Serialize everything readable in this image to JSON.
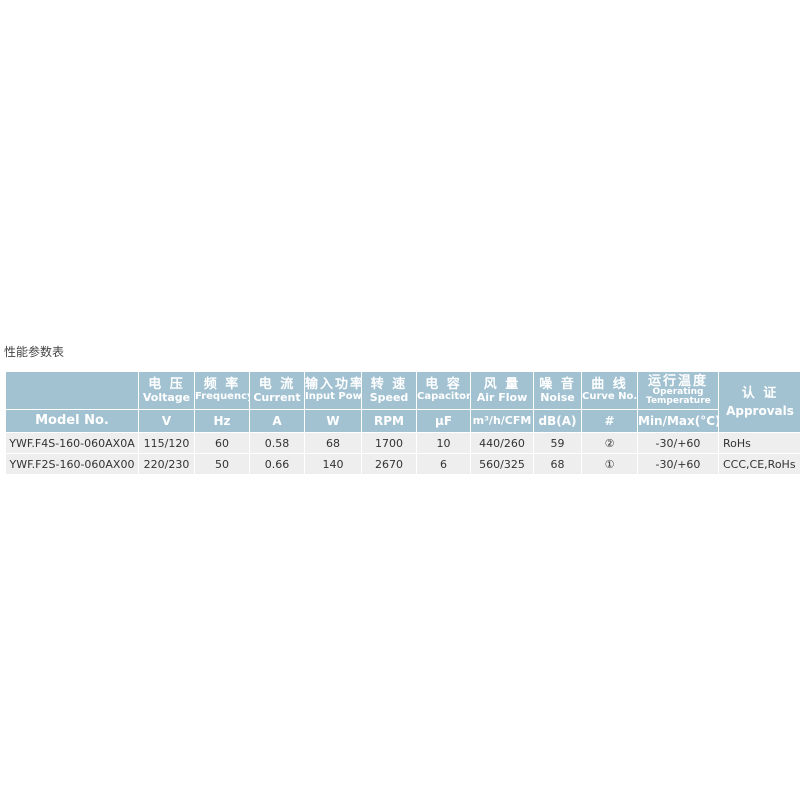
{
  "title": "性能参数表",
  "header": {
    "model": "Model No.",
    "columns": [
      {
        "cn": "电 压",
        "en": "Voltage",
        "unit": "V"
      },
      {
        "cn": "频 率",
        "en": "Frequency",
        "unit": "Hz"
      },
      {
        "cn": "电 流",
        "en": "Current",
        "unit": "A"
      },
      {
        "cn": "输入功率",
        "en": "Input Power",
        "unit": "W"
      },
      {
        "cn": "转 速",
        "en": "Speed",
        "unit": "RPM"
      },
      {
        "cn": "电 容",
        "en": "Capacitor",
        "unit": "μF"
      },
      {
        "cn": "风 量",
        "en": "Air Flow",
        "unit": "m³/h/CFM"
      },
      {
        "cn": "噪 音",
        "en": "Noise",
        "unit": "dB(A)"
      },
      {
        "cn": "曲 线",
        "en": "Curve No.",
        "unit": "#"
      },
      {
        "cn": "运行温度",
        "en": "Operating Temperature",
        "unit": "Min/Max(°C)"
      }
    ],
    "approvals": {
      "cn": "认 证",
      "en": "Approvals"
    }
  },
  "rows": [
    {
      "model": "YWF.F4S-160-060AX0A",
      "voltage": "115/120",
      "frequency": "60",
      "current": "0.58",
      "power": "68",
      "speed": "1700",
      "capacitor": "10",
      "airflow": "440/260",
      "noise": "59",
      "curve": "②",
      "temp": "-30/+60",
      "approvals": "RoHs"
    },
    {
      "model": "YWF.F2S-160-060AX00",
      "voltage": "220/230",
      "frequency": "50",
      "current": "0.66",
      "power": "140",
      "speed": "2670",
      "capacitor": "6",
      "airflow": "560/325",
      "noise": "68",
      "curve": "①",
      "temp": "-30/+60",
      "approvals": "CCC,CE,RoHs"
    }
  ],
  "colors": {
    "header": "#a2c2d2",
    "row": "#eeeeee"
  }
}
